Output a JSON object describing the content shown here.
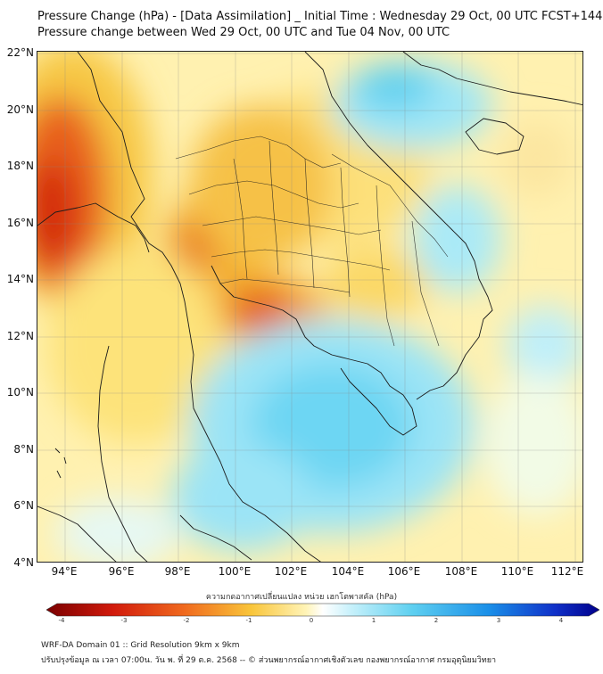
{
  "title_line1": "Pressure Change (hPa) - [Data Assimilation] _ Initial Time : Wednesday 29 Oct, 00 UTC FCST+144",
  "title_line2": "Pressure change between Wed 29 Oct, 00 UTC and Tue 04 Nov, 00 UTC",
  "lat_labels": [
    "22°N",
    "20°N",
    "18°N",
    "16°N",
    "14°N",
    "12°N",
    "10°N",
    "8°N",
    "6°N",
    "4°N"
  ],
  "lon_labels": [
    "94°E",
    "96°E",
    "98°E",
    "100°E",
    "102°E",
    "104°E",
    "106°E",
    "108°E",
    "110°E",
    "112°E"
  ],
  "colorbar": {
    "title": "ความกดอากาศเปลี่ยนแปลง หน่วย เฮกโตพาสคัล (hPa)",
    "ticks": [
      "-4",
      "-3",
      "-2",
      "-1",
      "0",
      "1",
      "2",
      "3",
      "4"
    ],
    "range": [
      -4,
      4
    ],
    "low_color": "#7a0000",
    "high_color": "#00008b"
  },
  "footer_line1": "WRF-DA Domain 01 :: Grid Resolution 9km x 9km",
  "footer_line2": "ปรับปรุงข้อมูล ณ เวลา 07:00น. วัน พ. ที่ 29 ต.ค. 2568 -- © ส่วนพยากรณ์อากาศเชิงตัวเลข กองพยากรณ์อากาศ กรมอุตุนิยมวิทยา"
}
